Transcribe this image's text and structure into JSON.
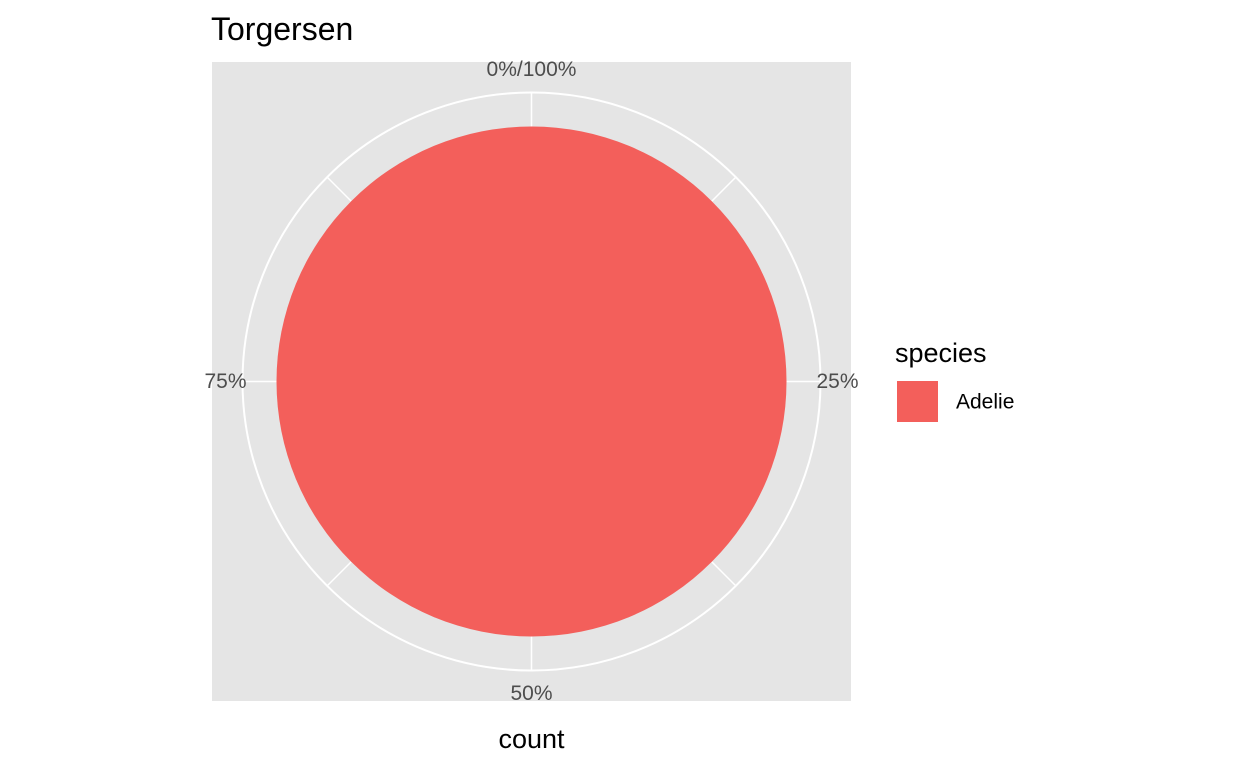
{
  "chart_data": {
    "type": "pie",
    "title": "Torgersen",
    "xlabel": "count",
    "ylabel": "",
    "theta_tick_labels": [
      "0%/100%",
      "25%",
      "50%",
      "75%"
    ],
    "theta_tick_values": [
      0,
      0.25,
      0.5,
      0.75
    ],
    "slices": [
      {
        "label": "Adelie",
        "value": 1.0
      }
    ],
    "legend": {
      "title": "species",
      "placement": "right",
      "entries": [
        "Adelie"
      ]
    },
    "grid": true,
    "colors": {
      "panel_background": "#e5e5e5",
      "grid_line": "#ffffff",
      "slices": [
        "#f35f5b"
      ]
    }
  }
}
